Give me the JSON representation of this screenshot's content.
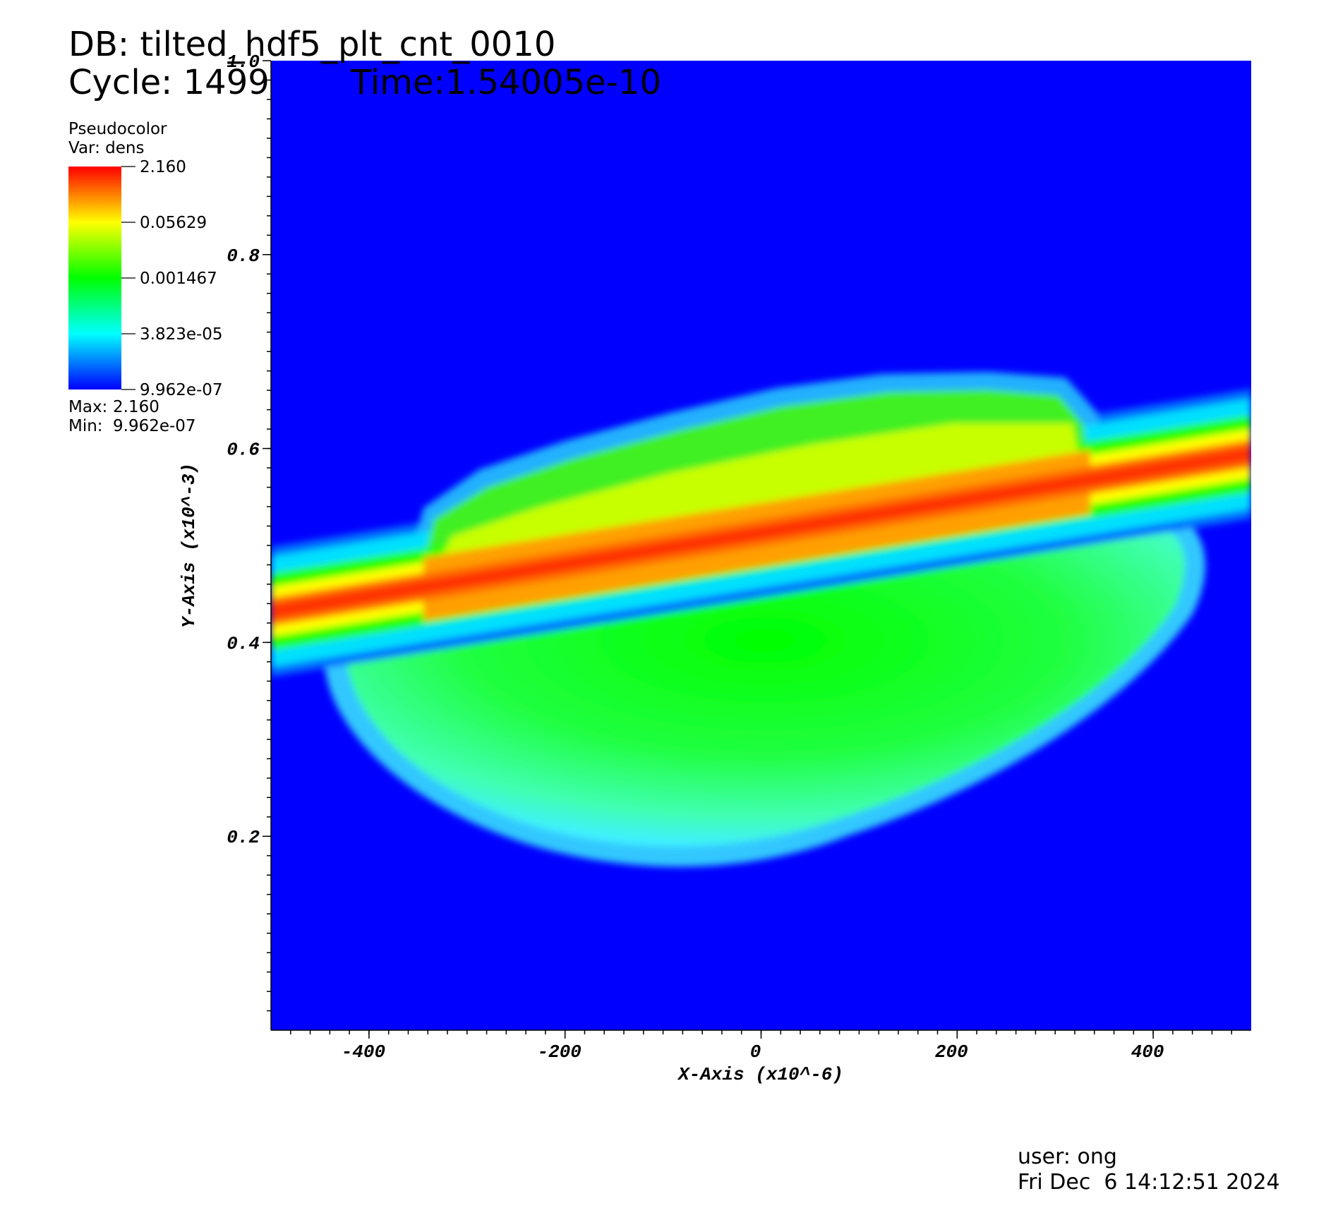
{
  "chart_data": {
    "type": "pseudocolor",
    "title": "DB: tilted_hdf5_plt_cnt_0010",
    "cycle": "Cycle: 1499",
    "time": "Time:1.54005e-10",
    "x_label": "X-Axis (x10^-6)",
    "y_label": "Y-Axis (x10^-3)",
    "xlim": [
      -500,
      500
    ],
    "ylim": [
      0,
      1
    ],
    "xticks": [
      -400,
      -200,
      0,
      200,
      400
    ],
    "yticks": [
      0.2,
      0.4,
      0.6,
      0.8,
      {
        "value": 1,
        "label": "1.0"
      }
    ],
    "background_color": "#0000ff",
    "legend": {
      "title": "Pseudocolor",
      "variable": "Var: dens",
      "log_scale": true,
      "range": [
        9.962e-07,
        2.16
      ],
      "ticks": [
        {
          "value": 2.16,
          "label": "2.160"
        },
        0.05629,
        0.001467,
        {
          "value": 3.823e-05,
          "label": "3.823e-05"
        },
        {
          "value": 9.962e-07,
          "label": "9.962e-07"
        }
      ],
      "colors": [
        "#0000ff",
        "#00ffff",
        "#00ff00",
        "#ffff00",
        "#ff0000"
      ],
      "max_label": "Max:",
      "max": {
        "value": 2.16,
        "label": "2.160"
      },
      "min_label": "Min:",
      "min": {
        "value": 9.962e-07,
        "label": "9.962e-07"
      }
    }
  },
  "footer": {
    "user": "user: ong",
    "date": "Fri Dec  6 14:12:51 2024"
  }
}
